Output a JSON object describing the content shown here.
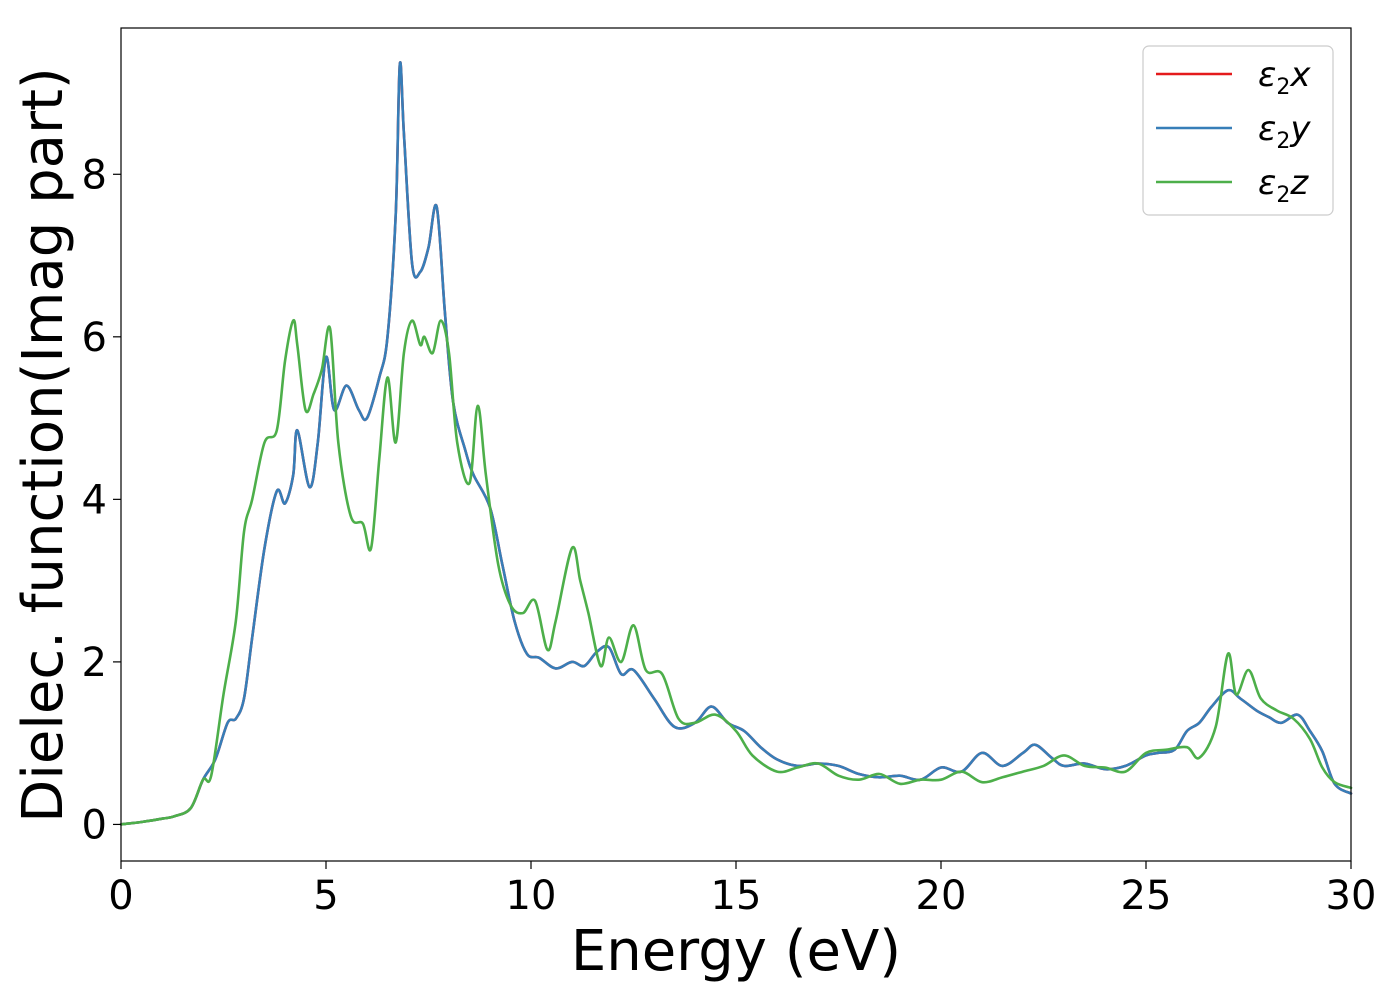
{
  "chart_data": {
    "type": "line",
    "title": "",
    "xlabel": "Energy (eV)",
    "ylabel": "Dielec. function(Imag part)",
    "xlim": [
      0,
      30
    ],
    "ylim": [
      -0.45,
      9.8
    ],
    "xticks": [
      0,
      5,
      10,
      15,
      20,
      25,
      30
    ],
    "yticks": [
      0,
      2,
      4,
      6,
      8
    ],
    "grid": false,
    "legend_position": "top-right",
    "legend": [
      {
        "sym": "ε",
        "sub": "2",
        "axis": "x",
        "color": "#e41a1c"
      },
      {
        "sym": "ε",
        "sub": "2",
        "axis": "y",
        "color": "#377eb8"
      },
      {
        "sym": "ε",
        "sub": "2",
        "axis": "z",
        "color": "#4daf4a"
      }
    ],
    "series": [
      {
        "name": "ε2x",
        "color": "#e41a1c",
        "x": [
          0,
          0.5,
          1,
          1.3,
          1.7,
          2,
          2.3,
          2.6,
          2.8,
          3,
          3.2,
          3.5,
          3.8,
          4,
          4.2,
          4.3,
          4.6,
          4.8,
          5,
          5.2,
          5.5,
          5.8,
          6,
          6.3,
          6.5,
          6.7,
          6.8,
          6.9,
          7.1,
          7.3,
          7.5,
          7.7,
          7.9,
          8.1,
          8.4,
          8.6,
          9,
          9.3,
          9.6,
          9.9,
          10.2,
          10.6,
          11,
          11.3,
          11.6,
          11.9,
          12.2,
          12.5,
          13,
          13.5,
          14,
          14.4,
          14.8,
          15.2,
          15.6,
          16,
          16.5,
          17,
          17.5,
          18,
          18.5,
          19,
          19.5,
          20,
          20.5,
          21,
          21.5,
          22,
          22.3,
          22.7,
          23,
          23.5,
          24,
          24.5,
          25,
          25.3,
          25.7,
          26,
          26.3,
          26.6,
          27,
          27.3,
          27.7,
          28,
          28.3,
          28.7,
          29,
          29.3,
          29.6,
          30
        ],
        "y": [
          0,
          0.03,
          0.07,
          0.1,
          0.2,
          0.55,
          0.8,
          1.25,
          1.3,
          1.55,
          2.3,
          3.4,
          4.1,
          3.95,
          4.3,
          4.85,
          4.15,
          4.7,
          5.75,
          5.1,
          5.4,
          5.1,
          5.0,
          5.5,
          6.0,
          7.5,
          9.35,
          8.5,
          6.9,
          6.8,
          7.1,
          7.6,
          6.3,
          5.2,
          4.6,
          4.3,
          3.9,
          3.2,
          2.5,
          2.1,
          2.05,
          1.92,
          2.0,
          1.95,
          2.12,
          2.18,
          1.85,
          1.9,
          1.55,
          1.2,
          1.25,
          1.45,
          1.25,
          1.15,
          0.95,
          0.8,
          0.72,
          0.75,
          0.72,
          0.62,
          0.58,
          0.6,
          0.55,
          0.7,
          0.65,
          0.88,
          0.72,
          0.88,
          0.98,
          0.82,
          0.72,
          0.75,
          0.68,
          0.72,
          0.85,
          0.88,
          0.92,
          1.15,
          1.25,
          1.45,
          1.65,
          1.55,
          1.4,
          1.32,
          1.25,
          1.35,
          1.15,
          0.9,
          0.5,
          0.38
        ]
      },
      {
        "name": "ε2y",
        "color": "#377eb8",
        "x": [
          0,
          0.5,
          1,
          1.3,
          1.7,
          2,
          2.3,
          2.6,
          2.8,
          3,
          3.2,
          3.5,
          3.8,
          4,
          4.2,
          4.3,
          4.6,
          4.8,
          5,
          5.2,
          5.5,
          5.8,
          6,
          6.3,
          6.5,
          6.7,
          6.8,
          6.9,
          7.1,
          7.3,
          7.5,
          7.7,
          7.9,
          8.1,
          8.4,
          8.6,
          9,
          9.3,
          9.6,
          9.9,
          10.2,
          10.6,
          11,
          11.3,
          11.6,
          11.9,
          12.2,
          12.5,
          13,
          13.5,
          14,
          14.4,
          14.8,
          15.2,
          15.6,
          16,
          16.5,
          17,
          17.5,
          18,
          18.5,
          19,
          19.5,
          20,
          20.5,
          21,
          21.5,
          22,
          22.3,
          22.7,
          23,
          23.5,
          24,
          24.5,
          25,
          25.3,
          25.7,
          26,
          26.3,
          26.6,
          27,
          27.3,
          27.7,
          28,
          28.3,
          28.7,
          29,
          29.3,
          29.6,
          30
        ],
        "y": [
          0,
          0.03,
          0.07,
          0.1,
          0.2,
          0.55,
          0.8,
          1.25,
          1.3,
          1.55,
          2.3,
          3.4,
          4.1,
          3.95,
          4.3,
          4.85,
          4.15,
          4.7,
          5.75,
          5.1,
          5.4,
          5.1,
          5.0,
          5.5,
          6.0,
          7.5,
          9.35,
          8.5,
          6.9,
          6.8,
          7.1,
          7.6,
          6.3,
          5.2,
          4.6,
          4.3,
          3.9,
          3.2,
          2.5,
          2.1,
          2.05,
          1.92,
          2.0,
          1.95,
          2.12,
          2.18,
          1.85,
          1.9,
          1.55,
          1.2,
          1.25,
          1.45,
          1.25,
          1.15,
          0.95,
          0.8,
          0.72,
          0.75,
          0.72,
          0.62,
          0.58,
          0.6,
          0.55,
          0.7,
          0.65,
          0.88,
          0.72,
          0.88,
          0.98,
          0.82,
          0.72,
          0.75,
          0.68,
          0.72,
          0.85,
          0.88,
          0.92,
          1.15,
          1.25,
          1.45,
          1.65,
          1.55,
          1.4,
          1.32,
          1.25,
          1.35,
          1.15,
          0.9,
          0.5,
          0.38
        ]
      },
      {
        "name": "ε2z",
        "color": "#4daf4a",
        "x": [
          0,
          0.5,
          1,
          1.3,
          1.7,
          2,
          2.2,
          2.5,
          2.8,
          3,
          3.2,
          3.5,
          3.8,
          4,
          4.2,
          4.3,
          4.5,
          4.7,
          4.9,
          5.1,
          5.3,
          5.6,
          5.9,
          6.1,
          6.3,
          6.5,
          6.7,
          6.9,
          7.1,
          7.3,
          7.4,
          7.6,
          7.8,
          8.0,
          8.2,
          8.5,
          8.7,
          8.9,
          9.2,
          9.5,
          9.8,
          10.1,
          10.4,
          10.6,
          11,
          11.2,
          11.4,
          11.7,
          11.9,
          12.2,
          12.5,
          12.8,
          13.2,
          13.6,
          14,
          14.5,
          15,
          15.4,
          16,
          16.5,
          17,
          17.5,
          18,
          18.5,
          19,
          19.5,
          20,
          20.5,
          21,
          21.5,
          22,
          22.5,
          23,
          23.5,
          24,
          24.5,
          25,
          25.5,
          26,
          26.3,
          26.7,
          27,
          27.2,
          27.5,
          27.8,
          28.2,
          28.6,
          29,
          29.3,
          29.6,
          30
        ],
        "y": [
          0,
          0.03,
          0.07,
          0.1,
          0.2,
          0.55,
          0.6,
          1.6,
          2.5,
          3.6,
          4.0,
          4.7,
          4.85,
          5.7,
          6.2,
          5.9,
          5.1,
          5.3,
          5.6,
          6.1,
          4.7,
          3.8,
          3.7,
          3.4,
          4.5,
          5.5,
          4.7,
          5.8,
          6.2,
          5.9,
          6.0,
          5.8,
          6.2,
          5.8,
          4.7,
          4.2,
          5.15,
          4.3,
          3.2,
          2.7,
          2.6,
          2.75,
          2.15,
          2.5,
          3.4,
          3.0,
          2.6,
          1.95,
          2.3,
          2.0,
          2.45,
          1.9,
          1.85,
          1.3,
          1.25,
          1.35,
          1.15,
          0.85,
          0.65,
          0.7,
          0.75,
          0.6,
          0.55,
          0.62,
          0.5,
          0.55,
          0.55,
          0.65,
          0.52,
          0.58,
          0.65,
          0.72,
          0.85,
          0.72,
          0.7,
          0.65,
          0.88,
          0.92,
          0.95,
          0.82,
          1.2,
          2.1,
          1.6,
          1.9,
          1.55,
          1.4,
          1.3,
          1.05,
          0.7,
          0.52,
          0.45
        ]
      }
    ]
  }
}
